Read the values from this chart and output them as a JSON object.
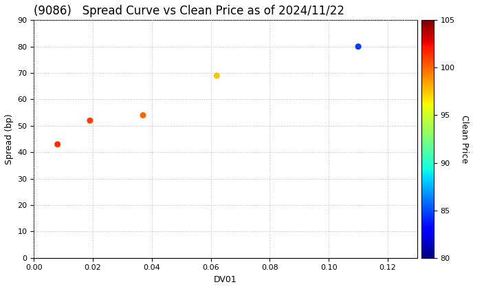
{
  "title": "(9086)   Spread Curve vs Clean Price as of 2024/11/22",
  "xlabel": "DV01",
  "ylabel": "Spread (bp)",
  "colorbar_label": "Clean Price",
  "points": [
    {
      "dv01": 0.008,
      "spread": 43,
      "clean_price": 101.5
    },
    {
      "dv01": 0.019,
      "spread": 52,
      "clean_price": 101.0
    },
    {
      "dv01": 0.037,
      "spread": 54,
      "clean_price": 100.0
    },
    {
      "dv01": 0.062,
      "spread": 69,
      "clean_price": 97.5
    },
    {
      "dv01": 0.11,
      "spread": 80,
      "clean_price": 84.5
    }
  ],
  "xlim": [
    0.0,
    0.13
  ],
  "ylim": [
    0,
    90
  ],
  "xticks": [
    0.0,
    0.02,
    0.04,
    0.06,
    0.08,
    0.1,
    0.12
  ],
  "yticks": [
    0,
    10,
    20,
    30,
    40,
    50,
    60,
    70,
    80,
    90
  ],
  "cmap_min": 80,
  "cmap_max": 105,
  "colorbar_ticks": [
    80,
    85,
    90,
    95,
    100,
    105
  ],
  "marker_size": 30,
  "background_color": "#ffffff",
  "grid_color": "#bbbbbb",
  "title_fontsize": 12,
  "figsize": [
    7.2,
    4.2
  ],
  "dpi": 100
}
